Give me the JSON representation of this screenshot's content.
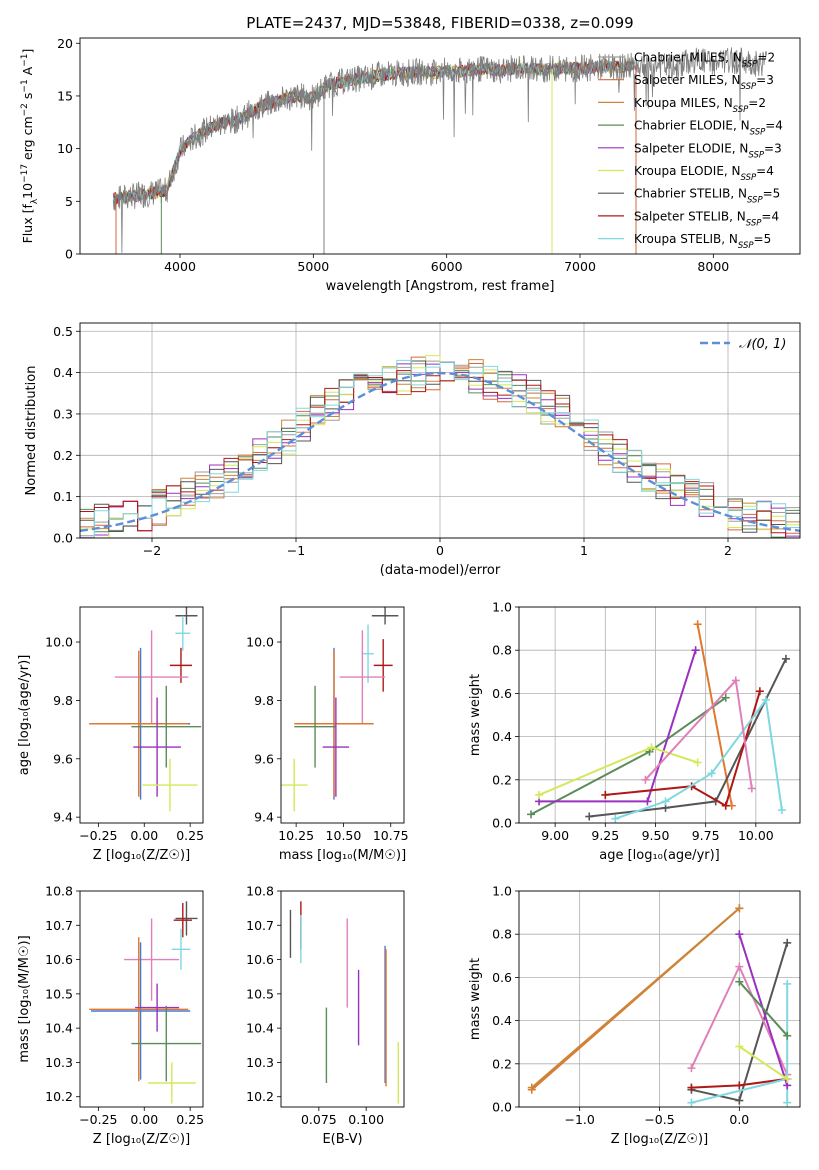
{
  "figure_title": "PLATE=2437, MJD=53848, FIBERID=0338, z=0.099",
  "models": [
    {
      "name": "Chabrier MILES",
      "nssp": "2",
      "color": "#9e9e9e"
    },
    {
      "name": "Salpeter MILES",
      "nssp": "3",
      "color": "#d36a3c"
    },
    {
      "name": "Kroupa MILES",
      "nssp": "2",
      "color": "#c8873a"
    },
    {
      "name": "Chabrier ELODIE",
      "nssp": "4",
      "color": "#5a8c5a"
    },
    {
      "name": "Salpeter ELODIE",
      "nssp": "3",
      "color": "#9a30c0"
    },
    {
      "name": "Kroupa ELODIE",
      "nssp": "4",
      "color": "#d4e85a"
    },
    {
      "name": "Chabrier STELIB",
      "nssp": "5",
      "color": "#555555"
    },
    {
      "name": "Salpeter STELIB",
      "nssp": "4",
      "color": "#b01818"
    },
    {
      "name": "Kroupa STELIB",
      "nssp": "5",
      "color": "#7fd8e0"
    }
  ],
  "extra_colors": {
    "pink": "#e080b8",
    "orange": "#e07830",
    "blue": "#4a78d0",
    "gray_obs": "#7f7f7f",
    "gauss": "#5b8fd9"
  },
  "chart_data": [
    {
      "id": "spectrum",
      "type": "line",
      "title": "PLATE=2437, MJD=53848, FIBERID=0338, z=0.099",
      "xlabel": "wavelength [Angstrom, rest frame]",
      "ylabel": "Flux [f_λ10^-17 erg cm^-2 s^-1 A^-1]",
      "xlim": [
        3250,
        8650
      ],
      "ylim": [
        0,
        20.5
      ],
      "xticks": [
        4000,
        5000,
        6000,
        7000,
        8000
      ],
      "yticks": [
        0,
        5,
        10,
        15,
        20
      ],
      "grid": false,
      "legend_position": "top-right",
      "observed": {
        "x": [
          3500,
          3600,
          3700,
          3800,
          3900,
          4000,
          4100,
          4200,
          4300,
          4400,
          4500,
          4600,
          4700,
          4800,
          4900,
          5000,
          5100,
          5200,
          5300,
          5400,
          5500,
          5600,
          5700,
          5800,
          5900,
          6000,
          6100,
          6200,
          6300,
          6400,
          6500,
          6600,
          6700,
          6800,
          6900,
          7000,
          7100,
          7200,
          7300,
          7400,
          7500,
          7600,
          7700,
          7800,
          7900,
          8000,
          8100,
          8200,
          8300,
          8400
        ],
        "y": [
          5.2,
          5.4,
          5.6,
          5.8,
          6.0,
          9.8,
          11.0,
          11.8,
          12.4,
          12.6,
          13.2,
          14.0,
          14.4,
          14.8,
          15.0,
          14.8,
          16.0,
          16.3,
          16.6,
          16.7,
          17.0,
          17.1,
          17.2,
          17.3,
          17.2,
          17.4,
          17.3,
          17.5,
          17.6,
          17.4,
          17.6,
          17.7,
          17.5,
          17.6,
          17.6,
          17.6,
          17.7,
          17.8,
          17.7,
          17.9,
          18.0,
          17.9,
          17.6,
          18.2,
          18.4,
          18.1,
          18.3,
          18.4,
          18.1,
          18.2
        ]
      },
      "model_xrange": [
        3500,
        7420
      ]
    },
    {
      "id": "residuals",
      "type": "bar",
      "xlabel": "(data-model)/error",
      "ylabel": "Normed distribution",
      "xlim": [
        -2.5,
        2.5
      ],
      "ylim": [
        0,
        0.52
      ],
      "xticks": [
        -2,
        -1,
        0,
        1,
        2
      ],
      "yticks": [
        0.0,
        0.1,
        0.2,
        0.3,
        0.4,
        0.5
      ],
      "grid": true,
      "legend_position": "top-right",
      "legend": "𝒩(0, 1)",
      "bin_width": 0.1,
      "histogram": {
        "bin_centers": [
          -2.45,
          -2.35,
          -2.25,
          -2.15,
          -2.05,
          -1.95,
          -1.85,
          -1.75,
          -1.65,
          -1.55,
          -1.45,
          -1.35,
          -1.25,
          -1.15,
          -1.05,
          -0.95,
          -0.85,
          -0.75,
          -0.65,
          -0.55,
          -0.45,
          -0.35,
          -0.25,
          -0.15,
          -0.05,
          0.05,
          0.15,
          0.25,
          0.35,
          0.45,
          0.55,
          0.65,
          0.75,
          0.85,
          0.95,
          1.05,
          1.15,
          1.25,
          1.35,
          1.45,
          1.55,
          1.65,
          1.75,
          1.85,
          1.95,
          2.05,
          2.15,
          2.25,
          2.35,
          2.45
        ],
        "values": [
          0.035,
          0.04,
          0.045,
          0.052,
          0.06,
          0.075,
          0.09,
          0.105,
          0.12,
          0.14,
          0.155,
          0.175,
          0.2,
          0.22,
          0.245,
          0.27,
          0.3,
          0.32,
          0.34,
          0.355,
          0.37,
          0.38,
          0.39,
          0.395,
          0.4,
          0.4,
          0.395,
          0.39,
          0.38,
          0.37,
          0.355,
          0.34,
          0.32,
          0.3,
          0.27,
          0.245,
          0.22,
          0.2,
          0.175,
          0.155,
          0.14,
          0.12,
          0.105,
          0.09,
          0.075,
          0.06,
          0.052,
          0.045,
          0.04,
          0.035
        ]
      }
    },
    {
      "id": "age-Z",
      "type": "scatter",
      "xlabel": "Z [log₁₀(Z/Z☉)]",
      "ylabel": "age  [log₁₀(age/yr)]",
      "xlim": [
        -0.35,
        0.32
      ],
      "ylim": [
        9.38,
        10.12
      ],
      "xticks": [
        -0.25,
        0.0,
        0.25
      ],
      "xticklabels": [
        "−0.25",
        "0.00",
        "0.25"
      ],
      "yticks": [
        9.4,
        9.6,
        9.8,
        10.0
      ],
      "yticklabels": [
        "9.4",
        "9.6",
        "9.8",
        "10.0"
      ],
      "grid": false,
      "points": [
        {
          "x": 0.23,
          "y": 10.09,
          "xerr": 0.06,
          "yerr": 0.03,
          "color": "#555555"
        },
        {
          "x": 0.21,
          "y": 10.03,
          "xerr": 0.04,
          "yerr": 0.06,
          "color": "#7fd8e0"
        },
        {
          "x": 0.2,
          "y": 9.92,
          "xerr": 0.06,
          "yerr": 0.06,
          "color": "#b01818"
        },
        {
          "x": 0.04,
          "y": 9.88,
          "xerr": 0.2,
          "yerr": 0.16,
          "color": "#e080b8"
        },
        {
          "x": -0.02,
          "y": 9.72,
          "xerr": 0.27,
          "yerr": 0.26,
          "color": "#4a78d0"
        },
        {
          "x": -0.03,
          "y": 9.72,
          "xerr": 0.27,
          "yerr": 0.25,
          "color": "#e07830"
        },
        {
          "x": 0.12,
          "y": 9.71,
          "xerr": 0.19,
          "yerr": 0.14,
          "color": "#5a8c5a"
        },
        {
          "x": 0.07,
          "y": 9.64,
          "xerr": 0.13,
          "yerr": 0.17,
          "color": "#9a30c0"
        },
        {
          "x": 0.14,
          "y": 9.51,
          "xerr": 0.15,
          "yerr": 0.09,
          "color": "#d4e85a"
        }
      ]
    },
    {
      "id": "age-mass",
      "type": "scatter",
      "xlabel": "mass [log₁₀(M/M☉)]",
      "ylabel": "",
      "xlim": [
        10.17,
        10.82
      ],
      "ylim": [
        9.38,
        10.12
      ],
      "xticks": [
        10.25,
        10.5,
        10.75
      ],
      "xticklabels": [
        "10.25",
        "10.50",
        "10.75"
      ],
      "yticks": [
        9.4,
        9.6,
        9.8,
        10.0
      ],
      "yticklabels": [
        "9.4",
        "9.6",
        "9.8",
        "10.0"
      ],
      "grid": false,
      "points": [
        {
          "x": 10.72,
          "y": 10.09,
          "xerr": 0.07,
          "yerr": 0.03,
          "color": "#555555"
        },
        {
          "x": 10.63,
          "y": 9.96,
          "xerr": 0.03,
          "yerr": 0.1,
          "color": "#7fd8e0"
        },
        {
          "x": 10.71,
          "y": 9.92,
          "xerr": 0.05,
          "yerr": 0.09,
          "color": "#b01818"
        },
        {
          "x": 10.6,
          "y": 9.88,
          "xerr": 0.12,
          "yerr": 0.16,
          "color": "#e080b8"
        },
        {
          "x": 10.45,
          "y": 9.72,
          "xerr": 0.2,
          "yerr": 0.26,
          "color": "#4a78d0"
        },
        {
          "x": 10.45,
          "y": 9.72,
          "xerr": 0.21,
          "yerr": 0.25,
          "color": "#e07830"
        },
        {
          "x": 10.35,
          "y": 9.71,
          "xerr": 0.11,
          "yerr": 0.14,
          "color": "#5a8c5a"
        },
        {
          "x": 10.46,
          "y": 9.64,
          "xerr": 0.07,
          "yerr": 0.17,
          "color": "#9a30c0"
        },
        {
          "x": 10.24,
          "y": 9.51,
          "xerr": 0.07,
          "yerr": 0.09,
          "color": "#d4e85a"
        }
      ]
    },
    {
      "id": "weight-age",
      "type": "line",
      "xlabel": "age  [log₁₀(age/yr)]",
      "ylabel": "mass weight",
      "xlim": [
        8.82,
        10.22
      ],
      "ylim": [
        0.0,
        1.0
      ],
      "xticks": [
        9.0,
        9.25,
        9.5,
        9.75,
        10.0
      ],
      "xticklabels": [
        "9.00",
        "9.25",
        "9.50",
        "9.75",
        "10.00"
      ],
      "yticks": [
        0.0,
        0.2,
        0.4,
        0.6,
        0.8,
        1.0
      ],
      "yticklabels": [
        "0.0",
        "0.2",
        "0.4",
        "0.6",
        "0.8",
        "1.0"
      ],
      "grid": true,
      "series": [
        {
          "x": [
            9.71,
            9.88
          ],
          "y": [
            0.92,
            0.08
          ],
          "color": "#e07830"
        },
        {
          "x": [
            8.88,
            9.47,
            9.85
          ],
          "y": [
            0.04,
            0.33,
            0.58
          ],
          "color": "#5a8c5a"
        },
        {
          "x": [
            8.92,
            9.46,
            9.7
          ],
          "y": [
            0.1,
            0.1,
            0.8
          ],
          "color": "#9a30c0"
        },
        {
          "x": [
            8.92,
            9.48,
            9.71
          ],
          "y": [
            0.13,
            0.35,
            0.28
          ],
          "color": "#d4e85a"
        },
        {
          "x": [
            9.17,
            9.55,
            9.8,
            10.15
          ],
          "y": [
            0.03,
            0.07,
            0.1,
            0.76
          ],
          "color": "#555555"
        },
        {
          "x": [
            9.25,
            9.68,
            9.85,
            10.02
          ],
          "y": [
            0.13,
            0.17,
            0.08,
            0.61
          ],
          "color": "#b01818"
        },
        {
          "x": [
            9.3,
            9.55,
            9.78,
            10.05,
            10.13
          ],
          "y": [
            0.02,
            0.1,
            0.23,
            0.57,
            0.06
          ],
          "color": "#7fd8e0"
        },
        {
          "x": [
            9.45,
            9.9,
            9.98
          ],
          "y": [
            0.2,
            0.66,
            0.16
          ],
          "color": "#e080b8"
        }
      ]
    },
    {
      "id": "mass-Z",
      "type": "scatter",
      "xlabel": "Z [log₁₀(Z/Z☉)]",
      "ylabel": "mass [log₁₀(M/M☉)]",
      "xlim": [
        -0.35,
        0.32
      ],
      "ylim": [
        10.17,
        10.8
      ],
      "xticks": [
        -0.25,
        0.0,
        0.25
      ],
      "xticklabels": [
        "−0.25",
        "0.00",
        "0.25"
      ],
      "yticks": [
        10.2,
        10.3,
        10.4,
        10.5,
        10.6,
        10.7,
        10.8
      ],
      "yticklabels": [
        "10.2",
        "10.3",
        "10.4",
        "10.5",
        "10.6",
        "10.7",
        "10.8"
      ],
      "grid": false,
      "points": [
        {
          "x": 0.23,
          "y": 10.72,
          "xerr": 0.06,
          "yerr": 0.05,
          "color": "#555555"
        },
        {
          "x": 0.21,
          "y": 10.715,
          "xerr": 0.05,
          "yerr": 0.05,
          "color": "#b01818"
        },
        {
          "x": 0.2,
          "y": 10.63,
          "xerr": 0.05,
          "yerr": 0.06,
          "color": "#7fd8e0"
        },
        {
          "x": 0.04,
          "y": 10.6,
          "xerr": 0.15,
          "yerr": 0.12,
          "color": "#e080b8"
        },
        {
          "x": -0.02,
          "y": 10.45,
          "xerr": 0.27,
          "yerr": 0.2,
          "color": "#4a78d0"
        },
        {
          "x": -0.03,
          "y": 10.455,
          "xerr": 0.27,
          "yerr": 0.21,
          "color": "#e07830"
        },
        {
          "x": 0.07,
          "y": 10.46,
          "xerr": 0.12,
          "yerr": 0.07,
          "color": "#9a30c0"
        },
        {
          "x": 0.12,
          "y": 10.355,
          "xerr": 0.19,
          "yerr": 0.11,
          "color": "#5a8c5a"
        },
        {
          "x": 0.15,
          "y": 10.24,
          "xerr": 0.13,
          "yerr": 0.06,
          "color": "#d4e85a"
        }
      ]
    },
    {
      "id": "mass-EBV",
      "type": "scatter",
      "xlabel": "E(B-V)",
      "ylabel": "",
      "xlim": [
        0.055,
        0.12
      ],
      "ylim": [
        10.17,
        10.8
      ],
      "xticks": [
        0.075,
        0.1
      ],
      "xticklabels": [
        "0.075",
        "0.100"
      ],
      "yticks": [
        10.2,
        10.3,
        10.4,
        10.5,
        10.6,
        10.7,
        10.8
      ],
      "yticklabels": [
        "10.2",
        "10.3",
        "10.4",
        "10.5",
        "10.6",
        "10.7",
        "10.8"
      ],
      "grid": false,
      "points": [
        {
          "x": 0.06,
          "y": 10.675,
          "xerr": 0,
          "yerr": 0.07,
          "color": "#555555"
        },
        {
          "x": 0.0655,
          "y": 10.7,
          "xerr": 0,
          "yerr": 0.07,
          "color": "#b01818"
        },
        {
          "x": 0.0655,
          "y": 10.66,
          "xerr": 0,
          "yerr": 0.07,
          "color": "#7fd8e0"
        },
        {
          "x": 0.09,
          "y": 10.59,
          "xerr": 0,
          "yerr": 0.13,
          "color": "#e080b8"
        },
        {
          "x": 0.096,
          "y": 10.46,
          "xerr": 0,
          "yerr": 0.11,
          "color": "#9a30c0"
        },
        {
          "x": 0.079,
          "y": 10.35,
          "xerr": 0,
          "yerr": 0.11,
          "color": "#5a8c5a"
        },
        {
          "x": 0.11,
          "y": 10.44,
          "xerr": 0,
          "yerr": 0.2,
          "color": "#4a78d0"
        },
        {
          "x": 0.1105,
          "y": 10.43,
          "xerr": 0,
          "yerr": 0.2,
          "color": "#e07830"
        },
        {
          "x": 0.117,
          "y": 10.27,
          "xerr": 0,
          "yerr": 0.09,
          "color": "#d4e85a"
        }
      ]
    },
    {
      "id": "weight-Z",
      "type": "line",
      "xlabel": "Z [log₁₀(Z/Z☉)]",
      "ylabel": "mass weight",
      "xlim": [
        -1.38,
        0.38
      ],
      "ylim": [
        0.0,
        1.0
      ],
      "xticks": [
        -1.0,
        -0.5,
        0.0
      ],
      "xticklabels": [
        "−1.0",
        "−0.5",
        "0.0"
      ],
      "yticks": [
        0.0,
        0.2,
        0.4,
        0.6,
        0.8,
        1.0
      ],
      "yticklabels": [
        "0.0",
        "0.2",
        "0.4",
        "0.6",
        "0.8",
        "1.0"
      ],
      "grid": true,
      "series": [
        {
          "x": [
            -1.3,
            0.0
          ],
          "y": [
            0.08,
            0.92
          ],
          "color": "#e07830"
        },
        {
          "x": [
            -1.3,
            0.0
          ],
          "y": [
            0.09,
            0.92
          ],
          "color": "#c8873a"
        },
        {
          "x": [
            -0.3,
            0.0,
            0.3
          ],
          "y": [
            0.08,
            0.03,
            0.76
          ],
          "color": "#555555"
        },
        {
          "x": [
            -0.3,
            0.0,
            0.3
          ],
          "y": [
            0.09,
            0.1,
            0.13
          ],
          "color": "#b01818"
        },
        {
          "x": [
            -0.3,
            0.0,
            0.3
          ],
          "y": [
            0.18,
            0.65,
            0.15
          ],
          "color": "#e080b8"
        },
        {
          "x": [
            -0.3,
            0.3
          ],
          "y": [
            0.02,
            0.13
          ],
          "color": "#7fd8e0"
        },
        {
          "x": [
            0.3,
            0.3
          ],
          "y": [
            0.02,
            0.57
          ],
          "color": "#7fd8e0"
        },
        {
          "x": [
            0.0,
            0.3
          ],
          "y": [
            0.8,
            0.1
          ],
          "color": "#9a30c0"
        },
        {
          "x": [
            0.0,
            0.3
          ],
          "y": [
            0.58,
            0.33
          ],
          "color": "#5a8c5a"
        },
        {
          "x": [
            0.0,
            0.3
          ],
          "y": [
            0.28,
            0.13
          ],
          "color": "#d4e85a"
        }
      ]
    }
  ]
}
